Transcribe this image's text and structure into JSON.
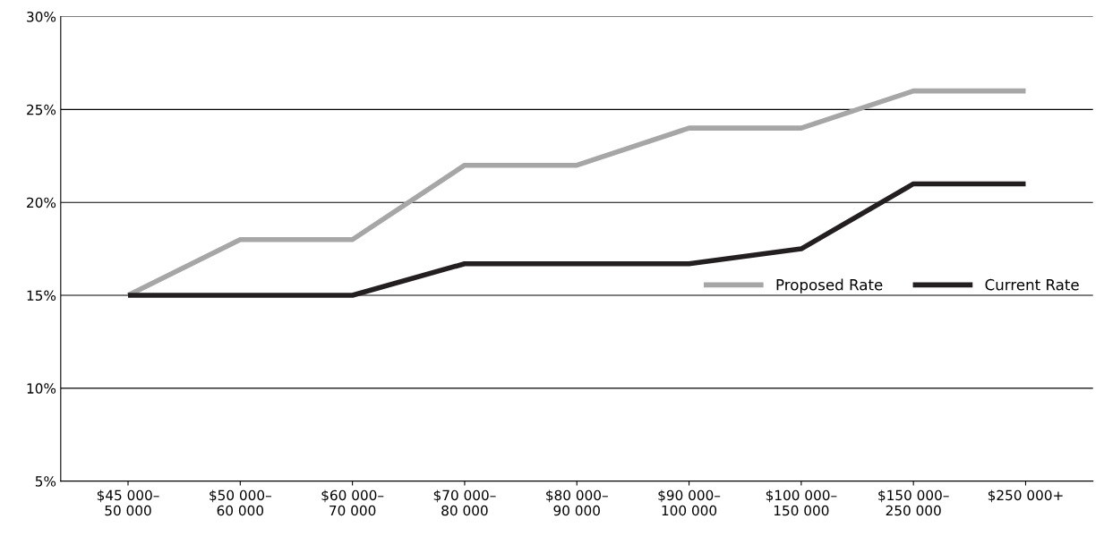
{
  "chart_data": {
    "type": "line",
    "categories": [
      "$45 000–\n50 000",
      "$50 000–\n60 000",
      "$60 000–\n70 000",
      "$70 000–\n80 000",
      "$80 000–\n90 000",
      "$90 000–\n100 000",
      "$100 000–\n150 000",
      "$150 000–\n250 000",
      "$250 000+"
    ],
    "series": [
      {
        "name": "Proposed Rate",
        "color": "#a6a6a6",
        "values": [
          15,
          18,
          18,
          22,
          22,
          24,
          24,
          26,
          26
        ]
      },
      {
        "name": "Current Rate",
        "color": "#231f20",
        "values": [
          15,
          15,
          15,
          16.7,
          16.7,
          16.7,
          17.5,
          21,
          21
        ]
      }
    ],
    "ylim": [
      5,
      30
    ],
    "yticks": [
      {
        "value": 5,
        "label": "5%"
      },
      {
        "value": 10,
        "label": "10%"
      },
      {
        "value": 15,
        "label": "15%"
      },
      {
        "value": 20,
        "label": "20%"
      },
      {
        "value": 25,
        "label": "25%"
      },
      {
        "value": 30,
        "label": "30%"
      }
    ],
    "grid": "y",
    "legend": "right",
    "line_style": "solid",
    "marker": "none"
  }
}
